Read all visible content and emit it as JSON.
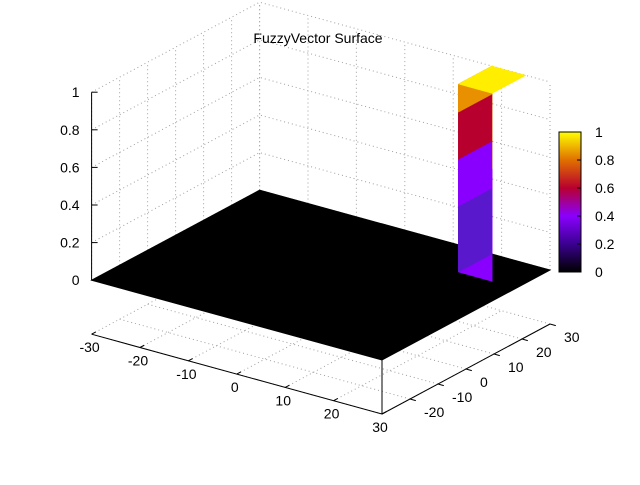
{
  "chart_data": {
    "type": "surface",
    "title": "FuzzyVector Surface",
    "xlabel": "",
    "ylabel": "",
    "zlabel": "",
    "x_range": [
      -30,
      30
    ],
    "y_range": [
      -30,
      30
    ],
    "z_range": [
      0,
      1
    ],
    "x_ticks": [
      "-30",
      "-20",
      "-10",
      "0",
      "10",
      "20",
      "30"
    ],
    "y_ticks": [
      "-20",
      "-10",
      "0",
      "10",
      "20",
      "30"
    ],
    "z_ticks": [
      "0",
      "0.2",
      "0.4",
      "0.6",
      "0.8",
      "1"
    ],
    "grid": true,
    "colorbar": {
      "ticks": [
        "0",
        "0.2",
        "0.4",
        "0.6",
        "0.8",
        "1"
      ],
      "palette": [
        "#000000",
        "#3a0090",
        "#8a00ff",
        "#b8002f",
        "#e07000",
        "#ffff00"
      ]
    },
    "baseline_value": 0,
    "plateau": {
      "x": [
        18,
        25
      ],
      "y": [
        18,
        30
      ],
      "steps": [
        {
          "z": [
            0.0,
            0.6
          ],
          "color": "#8a00ff"
        },
        {
          "z": [
            0.6,
            1.0
          ],
          "color": "#e07000"
        }
      ],
      "top_color": "#ffee00",
      "side_colors": [
        "#5a18cc",
        "#b8002f",
        "#e89000"
      ]
    },
    "base_color": "#000000"
  }
}
